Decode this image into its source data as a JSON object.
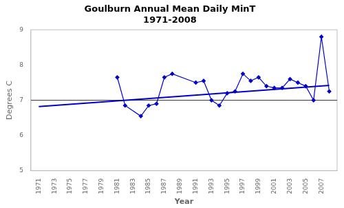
{
  "chart_data": {
    "type": "line",
    "title": "Goulburn Annual Mean Daily MinT",
    "subtitle": "1971-2008",
    "x_label": "Year",
    "y_label": "Degrees C",
    "xlim": [
      1970,
      2009
    ],
    "xticks": [
      1971,
      1973,
      1975,
      1977,
      1979,
      1981,
      1983,
      1985,
      1987,
      1989,
      1991,
      1993,
      1995,
      1997,
      1999,
      2001,
      2003,
      2005,
      2007
    ],
    "ylim": [
      5,
      9
    ],
    "yticks": [
      5,
      6,
      7,
      8,
      9
    ],
    "grid": false,
    "series": [
      {
        "color": "#0000CC",
        "marker": "diamond",
        "x": [
          1981,
          1982,
          1984,
          1985,
          1986,
          1987,
          1988,
          1991,
          1992,
          1993,
          1994,
          1995,
          1996,
          1997,
          1998,
          1999,
          2000,
          2001,
          2002,
          2003,
          2004,
          2005,
          2006,
          2007,
          2008
        ],
        "values": [
          7.65,
          6.85,
          6.55,
          6.85,
          6.9,
          7.65,
          7.75,
          7.5,
          7.55,
          7.0,
          6.85,
          7.2,
          7.25,
          7.75,
          7.55,
          7.65,
          7.4,
          7.35,
          7.35,
          7.6,
          7.5,
          7.4,
          7.0,
          8.8,
          7.25
        ]
      },
      {
        "color": "#0000CC",
        "marker": "none",
        "x": [
          1971,
          2008
        ],
        "values": [
          6.82,
          7.42
        ]
      }
    ],
    "reference_line": {
      "y": 7.0,
      "color": "black"
    }
  }
}
